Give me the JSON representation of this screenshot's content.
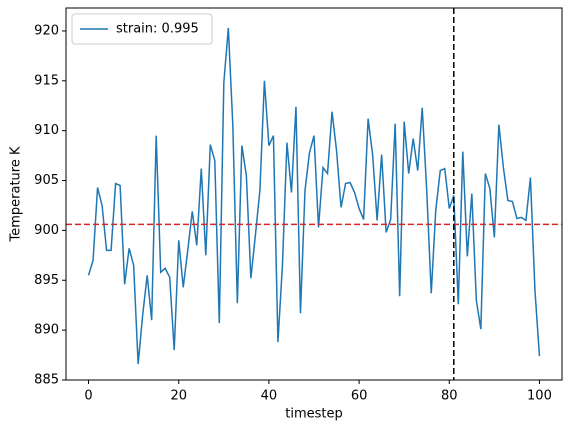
{
  "chart_data": {
    "type": "line",
    "xlabel": "timestep",
    "ylabel": "Temperature K",
    "x": [
      0,
      1,
      2,
      3,
      4,
      5,
      6,
      7,
      8,
      9,
      10,
      11,
      12,
      13,
      14,
      15,
      16,
      17,
      18,
      19,
      20,
      21,
      22,
      23,
      24,
      25,
      26,
      27,
      28,
      29,
      30,
      31,
      32,
      33,
      34,
      35,
      36,
      37,
      38,
      39,
      40,
      41,
      42,
      43,
      44,
      45,
      46,
      47,
      48,
      49,
      50,
      51,
      52,
      53,
      54,
      55,
      56,
      57,
      58,
      59,
      60,
      61,
      62,
      63,
      64,
      65,
      66,
      67,
      68,
      69,
      70,
      71,
      72,
      73,
      74,
      75,
      76,
      77,
      78,
      79,
      80,
      81,
      82,
      83,
      84,
      85,
      86,
      87,
      88,
      89,
      90,
      91,
      92,
      93,
      94,
      95,
      96,
      97,
      98,
      99,
      100
    ],
    "series": [
      {
        "name": "strain: 0.995",
        "color": "#1f77b4",
        "values": [
          895.5,
          897,
          904.3,
          902.5,
          898,
          898,
          904.7,
          904.5,
          894.6,
          898.2,
          896.5,
          886.6,
          891.5,
          895.5,
          891,
          909.5,
          895.8,
          896.2,
          895.3,
          888,
          899,
          894.3,
          898,
          901.9,
          898.5,
          906.2,
          897.5,
          908.6,
          907,
          890.7,
          914.8,
          920.3,
          910.5,
          892.7,
          908.5,
          905.5,
          895.2,
          899.5,
          904,
          915,
          908.5,
          909.5,
          888.8,
          896.5,
          908.8,
          903.8,
          912.4,
          891.7,
          904,
          907.8,
          909.5,
          900.3,
          906.3,
          905.7,
          911.9,
          908,
          902.3,
          904.7,
          904.8,
          903.8,
          902.2,
          901.1,
          911.2,
          907.6,
          901,
          907.6,
          899.8,
          901.1,
          910.7,
          893.4,
          910.9,
          905.7,
          909.2,
          906,
          912.3,
          904,
          893.7,
          902,
          906,
          906.2,
          902.2,
          903.5,
          892.6,
          907.9,
          897.4,
          903.7,
          893,
          890.1,
          905.7,
          904.2,
          899.3,
          910.6,
          906.3,
          903,
          902.9,
          901.2,
          901.3,
          901,
          905.3,
          894,
          887.4
        ]
      }
    ],
    "hline": {
      "value": 900.6,
      "color": "#d62728"
    },
    "vline": {
      "value": 81,
      "color": "#000000"
    },
    "xlim": [
      -5,
      105
    ],
    "ylim": [
      885,
      922.3
    ],
    "xticks": [
      0,
      20,
      40,
      60,
      80,
      100
    ],
    "yticks": [
      885,
      890,
      895,
      900,
      905,
      910,
      915,
      920
    ],
    "legend": "upper left"
  }
}
